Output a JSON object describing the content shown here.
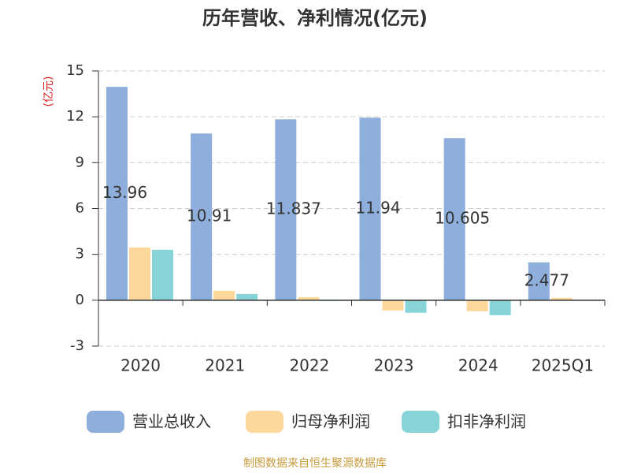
{
  "chart_data": {
    "type": "bar",
    "title": "历年营收、净利情况(亿元)",
    "y_label": "(亿元)",
    "categories": [
      "2020",
      "2021",
      "2022",
      "2023",
      "2024",
      "2025Q1"
    ],
    "series": [
      {
        "name": "营业总收入",
        "color": "#8eaedb",
        "values": [
          13.96,
          10.91,
          11.837,
          11.94,
          10.605,
          2.477
        ]
      },
      {
        "name": "归母净利润",
        "color": "#fdd89a",
        "values": [
          3.45,
          0.62,
          0.2,
          -0.67,
          -0.72,
          0.15
        ]
      },
      {
        "name": "扣非净利润",
        "color": "#86d4d8",
        "values": [
          3.3,
          0.41,
          -0.05,
          -0.82,
          -0.98,
          0
        ]
      }
    ],
    "ylim": [
      -3,
      15
    ],
    "yticks": [
      -3,
      0,
      3,
      6,
      9,
      12,
      15
    ],
    "grid": true,
    "source": "制图数据来自恒生聚源数据库"
  }
}
